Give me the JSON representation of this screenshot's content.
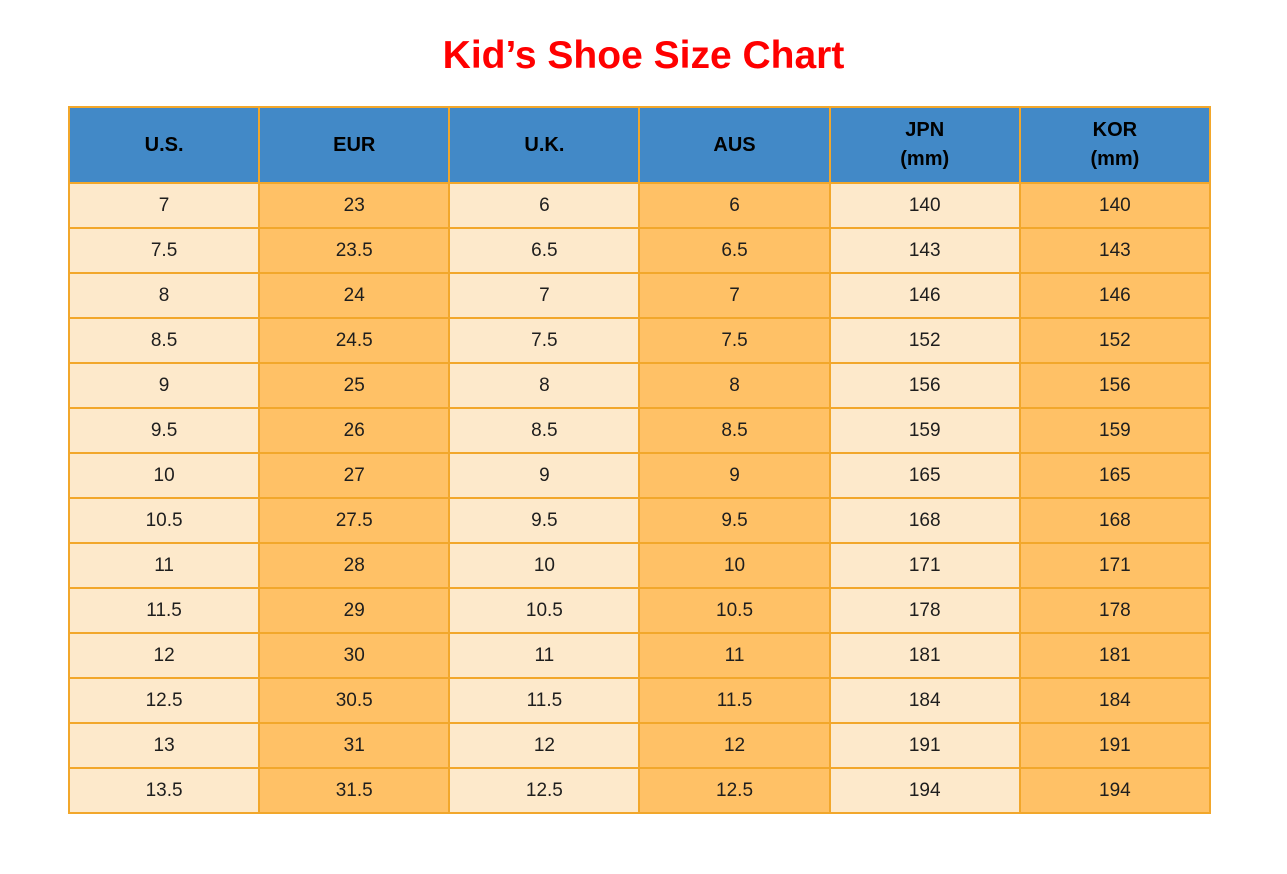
{
  "title": {
    "text": "Kid’s Shoe Size Chart"
  },
  "colors": {
    "title_red": "#FF0000",
    "header_blue": "#4289C7",
    "cell_cream": "#FDE9CB",
    "cell_orange": "#FFC166",
    "grid_orange": "#F2A72B",
    "text_black": "#1E1E1E"
  },
  "chart_data": {
    "type": "table",
    "title": "Kid’s Shoe Size Chart",
    "columns": [
      {
        "key": "us",
        "label": "U.S."
      },
      {
        "key": "eur",
        "label": "EUR"
      },
      {
        "key": "uk",
        "label": "U.K."
      },
      {
        "key": "aus",
        "label": "AUS"
      },
      {
        "key": "jpn",
        "label": "JPN\n(mm)"
      },
      {
        "key": "kor",
        "label": "KOR\n(mm)"
      }
    ],
    "rows": [
      [
        "7",
        "23",
        "6",
        "6",
        "140",
        "140"
      ],
      [
        "7.5",
        "23.5",
        "6.5",
        "6.5",
        "143",
        "143"
      ],
      [
        "8",
        "24",
        "7",
        "7",
        "146",
        "146"
      ],
      [
        "8.5",
        "24.5",
        "7.5",
        "7.5",
        "152",
        "152"
      ],
      [
        "9",
        "25",
        "8",
        "8",
        "156",
        "156"
      ],
      [
        "9.5",
        "26",
        "8.5",
        "8.5",
        "159",
        "159"
      ],
      [
        "10",
        "27",
        "9",
        "9",
        "165",
        "165"
      ],
      [
        "10.5",
        "27.5",
        "9.5",
        "9.5",
        "168",
        "168"
      ],
      [
        "11",
        "28",
        "10",
        "10",
        "171",
        "171"
      ],
      [
        "11.5",
        "29",
        "10.5",
        "10.5",
        "178",
        "178"
      ],
      [
        "12",
        "30",
        "11",
        "11",
        "181",
        "181"
      ],
      [
        "12.5",
        "30.5",
        "11.5",
        "11.5",
        "184",
        "184"
      ],
      [
        "13",
        "31",
        "12",
        "12",
        "191",
        "191"
      ],
      [
        "13.5",
        "31.5",
        "12.5",
        "12.5",
        "194",
        "194"
      ]
    ]
  }
}
